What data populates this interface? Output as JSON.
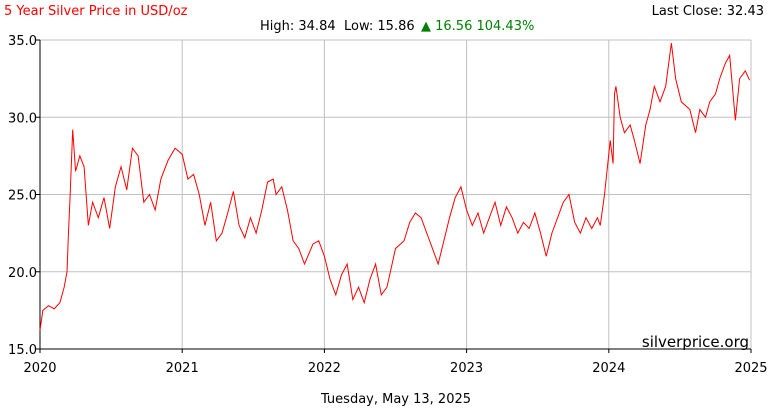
{
  "chart_data": {
    "type": "line",
    "title": "5 Year Silver Price in USD/oz",
    "last_close": "Last Close: 32.43",
    "high": "High: 34.84",
    "low": "Low: 15.86",
    "change": "▲ 16.56 104.43%",
    "date": "Tuesday, May 13, 2025",
    "watermark": "silverprice.org",
    "xlim": [
      2020,
      2025
    ],
    "xticks": [
      2020,
      2021,
      2022,
      2023,
      2024,
      2025
    ],
    "ylim": [
      15,
      35
    ],
    "yticks": [
      {
        "value": 15,
        "label": "15.0"
      },
      {
        "value": 20,
        "label": "20.0"
      },
      {
        "value": 25,
        "label": "25.0"
      },
      {
        "value": 30,
        "label": "30.0"
      },
      {
        "value": 35,
        "label": "35.0"
      }
    ],
    "grid": true,
    "series": [
      {
        "color": "#ff0000",
        "x": [
          2020.0,
          2020.02,
          2020.06,
          2020.1,
          2020.14,
          2020.17,
          2020.19,
          2020.2,
          2020.21,
          2020.23,
          2020.25,
          2020.28,
          2020.31,
          2020.34,
          2020.37,
          2020.41,
          2020.45,
          2020.49,
          2020.53,
          2020.57,
          2020.61,
          2020.65,
          2020.69,
          2020.73,
          2020.77,
          2020.81,
          2020.85,
          2020.9,
          2020.95,
          2021.0,
          2021.04,
          2021.08,
          2021.12,
          2021.16,
          2021.2,
          2021.24,
          2021.28,
          2021.32,
          2021.36,
          2021.4,
          2021.44,
          2021.48,
          2021.52,
          2021.56,
          2021.6,
          2021.64,
          2021.66,
          2021.7,
          2021.74,
          2021.78,
          2021.82,
          2021.86,
          2021.92,
          2021.96,
          2022.0,
          2022.04,
          2022.08,
          2022.12,
          2022.16,
          2022.2,
          2022.24,
          2022.28,
          2022.32,
          2022.36,
          2022.4,
          2022.44,
          2022.5,
          2022.56,
          2022.6,
          2022.64,
          2022.68,
          2022.72,
          2022.76,
          2022.8,
          2022.84,
          2022.88,
          2022.92,
          2022.96,
          2023.0,
          2023.04,
          2023.08,
          2023.12,
          2023.16,
          2023.2,
          2023.24,
          2023.28,
          2023.32,
          2023.36,
          2023.4,
          2023.44,
          2023.48,
          2023.52,
          2023.56,
          2023.6,
          2023.64,
          2023.68,
          2023.72,
          2023.76,
          2023.8,
          2023.84,
          2023.88,
          2023.92,
          2023.94,
          2023.97,
          2024.01,
          2024.03,
          2024.04,
          2024.05,
          2024.08,
          2024.11,
          2024.15,
          2024.18,
          2024.22,
          2024.26,
          2024.29,
          2024.32,
          2024.36,
          2024.4,
          2024.44,
          2024.47,
          2024.51,
          2024.57,
          2024.61,
          2024.64,
          2024.68,
          2024.71,
          2024.75,
          2024.78,
          2024.82,
          2024.85,
          2024.89,
          2024.92,
          2024.96,
          2024.99
        ],
        "values": [
          16.2,
          17.5,
          17.8,
          17.6,
          18.0,
          19.0,
          20.0,
          22.5,
          24.5,
          29.2,
          26.5,
          27.5,
          26.8,
          23.0,
          24.5,
          23.5,
          24.8,
          22.8,
          25.5,
          26.8,
          25.3,
          28.0,
          27.5,
          24.5,
          25.0,
          24.0,
          26.0,
          27.2,
          28.0,
          27.6,
          26.0,
          26.3,
          25.0,
          23.0,
          24.5,
          22.0,
          22.5,
          23.8,
          25.2,
          23.0,
          22.2,
          23.5,
          22.5,
          24.0,
          25.8,
          26.0,
          25.0,
          25.5,
          24.0,
          22.0,
          21.5,
          20.5,
          21.8,
          22.0,
          21.0,
          19.5,
          18.5,
          19.8,
          20.5,
          18.2,
          19.0,
          18.0,
          19.5,
          20.5,
          18.5,
          19.0,
          21.5,
          22.0,
          23.2,
          23.8,
          23.5,
          22.5,
          21.5,
          20.5,
          22.0,
          23.5,
          24.8,
          25.5,
          24.0,
          23.0,
          23.8,
          22.5,
          23.5,
          24.5,
          23.0,
          24.2,
          23.5,
          22.5,
          23.2,
          22.8,
          23.8,
          22.5,
          21.0,
          22.5,
          23.5,
          24.5,
          25.0,
          23.2,
          22.5,
          23.5,
          22.8,
          23.5,
          23.0,
          25.0,
          28.5,
          27.0,
          31.5,
          32.0,
          30.0,
          29.0,
          29.5,
          28.5,
          27.0,
          29.5,
          30.5,
          32.0,
          31.0,
          32.0,
          34.8,
          32.5,
          31.0,
          30.5,
          29.0,
          30.5,
          30.0,
          31.0,
          31.5,
          32.5,
          33.5,
          34.0,
          29.8,
          32.5,
          33.0,
          32.4
        ]
      }
    ]
  }
}
